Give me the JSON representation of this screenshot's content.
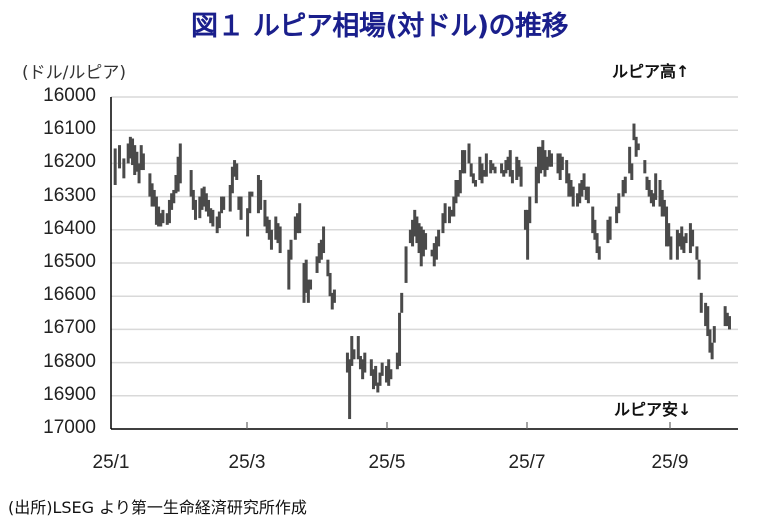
{
  "header": {
    "title": "図１ ルピア相場(対ドル)の推移",
    "unit_label": "(ドル/ルピア)",
    "note_up": "ルピア高↑",
    "note_down": "ルピア安↓"
  },
  "footer": {
    "source": "(出所)LSEG より第一生命経済研究所作成"
  },
  "colors": {
    "title": "#1a1f8c",
    "bar": "#4a4a4a",
    "grid": "#d9d9d9",
    "axis": "#000000"
  },
  "chart_data": {
    "type": "bar",
    "subtype": "high-low range (daily)",
    "title": "図１ ルピア相場(対ドル)の推移",
    "xlabel": "",
    "ylabel": "(ドル/ルピア)",
    "ylim": [
      16000,
      17000
    ],
    "y_inverted": true,
    "yticks": [
      16000,
      16100,
      16200,
      16300,
      16400,
      16500,
      16600,
      16700,
      16800,
      16900,
      17000
    ],
    "xticks": [
      "25/1",
      "25/3",
      "25/5",
      "25/7",
      "25/9"
    ],
    "grid": true,
    "annotations": [
      "ルピア高↑",
      "ルピア安↓"
    ],
    "x_domain_days": [
      0,
      270
    ],
    "bars": [
      [
        1,
        16155,
        16265
      ],
      [
        3,
        16145,
        16215
      ],
      [
        5,
        16185,
        16245
      ],
      [
        7,
        16140,
        16200
      ],
      [
        8,
        16120,
        16185
      ],
      [
        9,
        16125,
        16205
      ],
      [
        10,
        16145,
        16235
      ],
      [
        11,
        16165,
        16225
      ],
      [
        12,
        16200,
        16260
      ],
      [
        13,
        16145,
        16220
      ],
      [
        14,
        16170,
        16220
      ],
      [
        17,
        16230,
        16300
      ],
      [
        18,
        16260,
        16330
      ],
      [
        19,
        16280,
        16330
      ],
      [
        20,
        16300,
        16385
      ],
      [
        21,
        16330,
        16390
      ],
      [
        22,
        16350,
        16390
      ],
      [
        23,
        16340,
        16380
      ],
      [
        25,
        16350,
        16385
      ],
      [
        26,
        16310,
        16380
      ],
      [
        27,
        16290,
        16340
      ],
      [
        28,
        16280,
        16320
      ],
      [
        29,
        16235,
        16290
      ],
      [
        30,
        16180,
        16285
      ],
      [
        31,
        16140,
        16260
      ],
      [
        36,
        16220,
        16300
      ],
      [
        37,
        16280,
        16340
      ],
      [
        38,
        16310,
        16370
      ],
      [
        40,
        16300,
        16365
      ],
      [
        41,
        16275,
        16340
      ],
      [
        42,
        16270,
        16330
      ],
      [
        43,
        16290,
        16345
      ],
      [
        44,
        16310,
        16360
      ],
      [
        45,
        16335,
        16380
      ],
      [
        46,
        16340,
        16390
      ],
      [
        48,
        16360,
        16410
      ],
      [
        49,
        16345,
        16395
      ],
      [
        50,
        16300,
        16350
      ],
      [
        51,
        16300,
        16340
      ],
      [
        54,
        16265,
        16345
      ],
      [
        55,
        16210,
        16290
      ],
      [
        56,
        16190,
        16240
      ],
      [
        57,
        16200,
        16250
      ],
      [
        58,
        16300,
        16340
      ],
      [
        59,
        16300,
        16370
      ],
      [
        62,
        16335,
        16420
      ],
      [
        63,
        16285,
        16350
      ],
      [
        64,
        16285,
        16300
      ],
      [
        67,
        16235,
        16350
      ],
      [
        68,
        16250,
        16340
      ],
      [
        70,
        16310,
        16390
      ],
      [
        71,
        16360,
        16410
      ],
      [
        72,
        16370,
        16430
      ],
      [
        73,
        16400,
        16460
      ],
      [
        75,
        16360,
        16430
      ],
      [
        76,
        16380,
        16440
      ],
      [
        77,
        16390,
        16470
      ],
      [
        81,
        16460,
        16580
      ],
      [
        82,
        16430,
        16490
      ],
      [
        84,
        16360,
        16430
      ],
      [
        85,
        16350,
        16410
      ],
      [
        86,
        16320,
        16410
      ],
      [
        88,
        16500,
        16620
      ],
      [
        89,
        16490,
        16590
      ],
      [
        90,
        16550,
        16620
      ],
      [
        91,
        16550,
        16580
      ],
      [
        94,
        16480,
        16530
      ],
      [
        95,
        16440,
        16500
      ],
      [
        96,
        16430,
        16490
      ],
      [
        97,
        16390,
        16470
      ],
      [
        99,
        16490,
        16540
      ],
      [
        100,
        16530,
        16600
      ],
      [
        101,
        16590,
        16640
      ],
      [
        102,
        16580,
        16620
      ],
      [
        108,
        16770,
        16830
      ],
      [
        109,
        16790,
        16970
      ],
      [
        110,
        16720,
        16810
      ],
      [
        111,
        16760,
        16790
      ],
      [
        113,
        16720,
        16790
      ],
      [
        114,
        16780,
        16820
      ],
      [
        115,
        16790,
        16850
      ],
      [
        116,
        16770,
        16830
      ],
      [
        119,
        16790,
        16840
      ],
      [
        120,
        16820,
        16880
      ],
      [
        121,
        16810,
        16870
      ],
      [
        122,
        16860,
        16890
      ],
      [
        123,
        16830,
        16870
      ],
      [
        124,
        16800,
        16840
      ],
      [
        126,
        16810,
        16860
      ],
      [
        127,
        16790,
        16870
      ],
      [
        128,
        16820,
        16850
      ],
      [
        131,
        16770,
        16820
      ],
      [
        132,
        16650,
        16810
      ],
      [
        133,
        16590,
        16650
      ],
      [
        135,
        16450,
        16560
      ],
      [
        137,
        16400,
        16440
      ],
      [
        138,
        16370,
        16450
      ],
      [
        139,
        16340,
        16420
      ],
      [
        140,
        16360,
        16440
      ],
      [
        141,
        16380,
        16470
      ],
      [
        142,
        16390,
        16510
      ],
      [
        143,
        16400,
        16480
      ],
      [
        144,
        16410,
        16460
      ],
      [
        147,
        16460,
        16480
      ],
      [
        148,
        16440,
        16510
      ],
      [
        149,
        16420,
        16490
      ],
      [
        150,
        16400,
        16450
      ],
      [
        152,
        16350,
        16410
      ],
      [
        153,
        16320,
        16380
      ],
      [
        155,
        16330,
        16380
      ],
      [
        156,
        16340,
        16360
      ],
      [
        157,
        16300,
        16360
      ],
      [
        158,
        16250,
        16320
      ],
      [
        159,
        16250,
        16300
      ],
      [
        160,
        16220,
        16290
      ],
      [
        161,
        16160,
        16230
      ],
      [
        162,
        16160,
        16230
      ],
      [
        164,
        16140,
        16200
      ],
      [
        165,
        16200,
        16240
      ],
      [
        166,
        16230,
        16260
      ],
      [
        167,
        16250,
        16270
      ],
      [
        169,
        16180,
        16250
      ],
      [
        170,
        16200,
        16260
      ],
      [
        171,
        16220,
        16240
      ],
      [
        172,
        16170,
        16240
      ],
      [
        174,
        16190,
        16230
      ],
      [
        175,
        16200,
        16220
      ],
      [
        176,
        16210,
        16230
      ],
      [
        179,
        16200,
        16230
      ],
      [
        180,
        16220,
        16240
      ],
      [
        181,
        16190,
        16230
      ],
      [
        182,
        16180,
        16220
      ],
      [
        183,
        16160,
        16240
      ],
      [
        184,
        16220,
        16260
      ],
      [
        186,
        16180,
        16250
      ],
      [
        187,
        16190,
        16240
      ],
      [
        188,
        16210,
        16270
      ],
      [
        190,
        16340,
        16400
      ],
      [
        191,
        16340,
        16490
      ],
      [
        192,
        16300,
        16380
      ],
      [
        195,
        16210,
        16320
      ],
      [
        196,
        16150,
        16260
      ],
      [
        197,
        16150,
        16230
      ],
      [
        198,
        16130,
        16220
      ],
      [
        199,
        16160,
        16240
      ],
      [
        200,
        16180,
        16220
      ],
      [
        201,
        16160,
        16210
      ],
      [
        202,
        16170,
        16210
      ],
      [
        205,
        16170,
        16230
      ],
      [
        206,
        16170,
        16250
      ],
      [
        207,
        16180,
        16220
      ],
      [
        209,
        16190,
        16260
      ],
      [
        210,
        16230,
        16300
      ],
      [
        211,
        16250,
        16300
      ],
      [
        212,
        16270,
        16330
      ],
      [
        214,
        16290,
        16330
      ],
      [
        215,
        16260,
        16320
      ],
      [
        216,
        16250,
        16300
      ],
      [
        217,
        16230,
        16280
      ],
      [
        218,
        16270,
        16310
      ],
      [
        219,
        16270,
        16320
      ],
      [
        221,
        16330,
        16410
      ],
      [
        222,
        16370,
        16430
      ],
      [
        223,
        16410,
        16470
      ],
      [
        224,
        16450,
        16490
      ],
      [
        228,
        16370,
        16440
      ],
      [
        229,
        16360,
        16430
      ],
      [
        232,
        16330,
        16380
      ],
      [
        233,
        16290,
        16350
      ],
      [
        235,
        16250,
        16300
      ],
      [
        236,
        16240,
        16290
      ],
      [
        238,
        16150,
        16230
      ],
      [
        239,
        16200,
        16250
      ],
      [
        240,
        16080,
        16130
      ],
      [
        241,
        16120,
        16180
      ],
      [
        242,
        16140,
        16160
      ],
      [
        245,
        16190,
        16230
      ],
      [
        246,
        16240,
        16280
      ],
      [
        247,
        16250,
        16300
      ],
      [
        248,
        16280,
        16320
      ],
      [
        249,
        16290,
        16330
      ],
      [
        250,
        16230,
        16310
      ],
      [
        252,
        16250,
        16330
      ],
      [
        253,
        16280,
        16360
      ],
      [
        254,
        16310,
        16360
      ],
      [
        255,
        16330,
        16450
      ],
      [
        256,
        16380,
        16450
      ],
      [
        257,
        16420,
        16490
      ],
      [
        260,
        16400,
        16490
      ],
      [
        261,
        16410,
        16450
      ],
      [
        262,
        16390,
        16460
      ],
      [
        263,
        16420,
        16470
      ],
      [
        264,
        16410,
        16440
      ],
      [
        266,
        16380,
        16470
      ],
      [
        267,
        16400,
        16450
      ],
      [
        269,
        16450,
        16490
      ],
      [
        270,
        16490,
        16550
      ],
      [
        271,
        16590,
        16650
      ],
      [
        273,
        16620,
        16690
      ],
      [
        274,
        16630,
        16720
      ],
      [
        275,
        16700,
        16770
      ],
      [
        276,
        16740,
        16790
      ],
      [
        277,
        16690,
        16740
      ],
      [
        282,
        16630,
        16690
      ],
      [
        283,
        16650,
        16690
      ],
      [
        284,
        16660,
        16700
      ]
    ]
  }
}
